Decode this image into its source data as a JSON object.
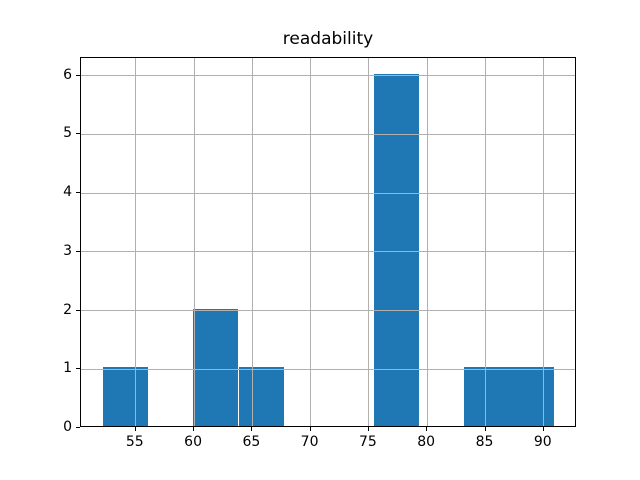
{
  "chart_data": {
    "type": "histogram",
    "title": "readability",
    "xlabel": "",
    "ylabel": "",
    "bin_edges": [
      52.2,
      56.07,
      59.94,
      63.81,
      67.68,
      71.55,
      75.42,
      79.29,
      83.16,
      87.03,
      90.9
    ],
    "counts": [
      1,
      0,
      2,
      1,
      0,
      0,
      6,
      0,
      1,
      1
    ],
    "total_count": 12,
    "x_ticks": [
      55,
      60,
      65,
      70,
      75,
      80,
      85,
      90
    ],
    "x_tick_labels": [
      "55",
      "60",
      "65",
      "70",
      "75",
      "80",
      "85",
      "90"
    ],
    "y_ticks": [
      0,
      1,
      2,
      3,
      4,
      5,
      6
    ],
    "y_tick_labels": [
      "0",
      "1",
      "2",
      "3",
      "4",
      "5",
      "6"
    ],
    "xlim": [
      50.3,
      92.85
    ],
    "ylim": [
      0,
      6.3
    ],
    "grid": true,
    "grid_above_bars": true,
    "legend": null,
    "colors": {
      "bar_fill": "#1f77b4",
      "grid": "#b0b0b0",
      "axis": "#000000",
      "text": "#000000",
      "background": "#ffffff"
    }
  }
}
